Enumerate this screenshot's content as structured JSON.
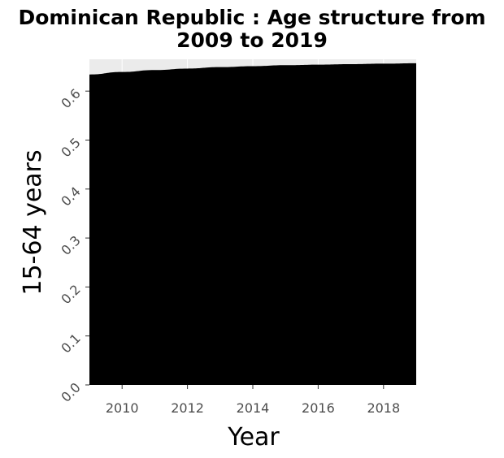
{
  "chart_data": {
    "type": "area",
    "title": "Dominican Republic : Age structure from 2009 to 2019",
    "title_lines": [
      "Dominican Republic : Age structure from",
      "2009 to 2019"
    ],
    "xlabel": "Year",
    "ylabel": "15-64 years",
    "xlim": [
      2009,
      2019
    ],
    "ylim": [
      0,
      0.665
    ],
    "x_ticks": [
      2010,
      2012,
      2014,
      2016,
      2018
    ],
    "x_tick_labels": [
      "2010",
      "2012",
      "2014",
      "2016",
      "2018"
    ],
    "y_ticks": [
      0.0,
      0.1,
      0.2,
      0.3,
      0.4,
      0.5,
      0.6
    ],
    "y_tick_labels": [
      "0.0",
      "0.1",
      "0.2",
      "0.3",
      "0.4",
      "0.5",
      "0.6"
    ],
    "grid": true,
    "series": [
      {
        "x": [
          2009,
          2010,
          2011,
          2012,
          2013,
          2014,
          2015,
          2016,
          2017,
          2018,
          2019
        ],
        "values": [
          0.634,
          0.639,
          0.643,
          0.646,
          0.649,
          0.651,
          0.653,
          0.654,
          0.655,
          0.656,
          0.657
        ]
      }
    ],
    "colors": {
      "area_fill": "#000000",
      "panel_background": "#ebebeb",
      "grid": "#ffffff",
      "tick_text": "#4d4d4d"
    }
  }
}
